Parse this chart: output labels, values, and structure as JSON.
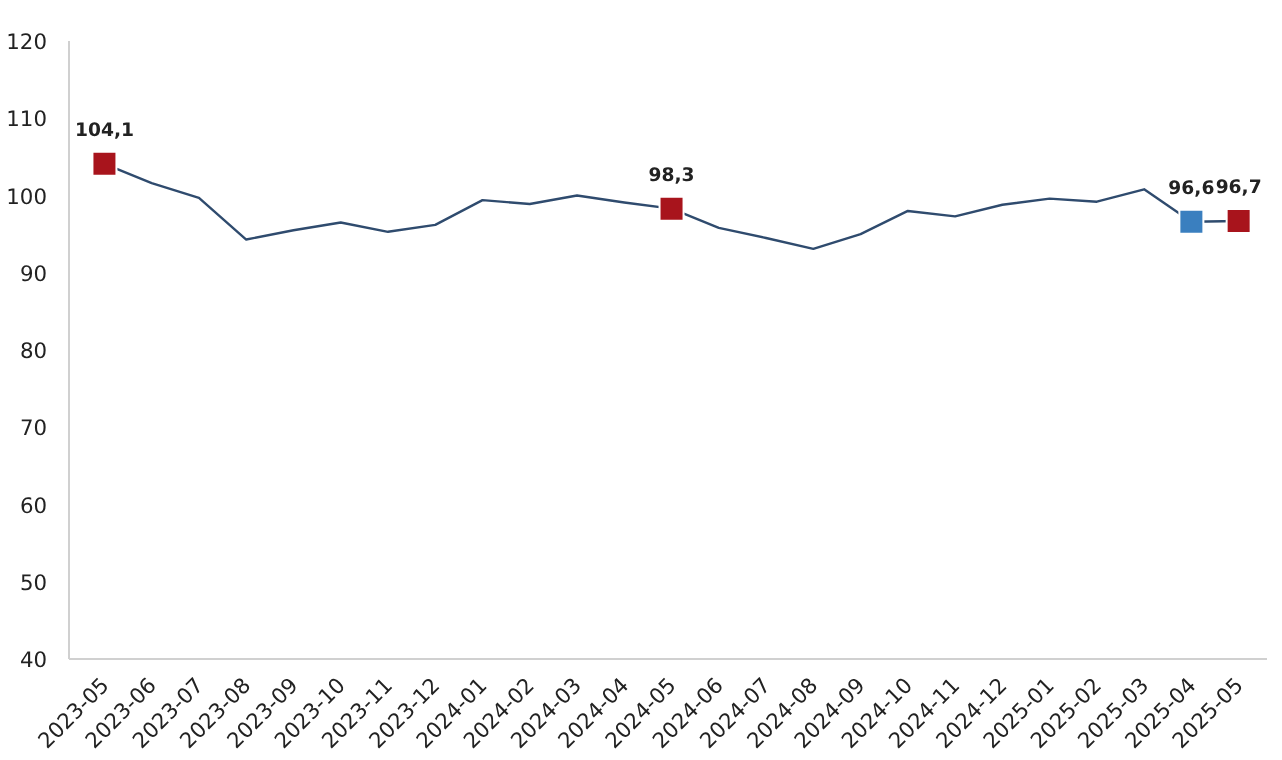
{
  "chart_data": {
    "type": "line",
    "categories": [
      "2023-05",
      "2023-06",
      "2023-07",
      "2023-08",
      "2023-09",
      "2023-10",
      "2023-11",
      "2023-12",
      "2024-01",
      "2024-02",
      "2024-03",
      "2024-04",
      "2024-05",
      "2024-06",
      "2024-07",
      "2024-08",
      "2024-09",
      "2024-10",
      "2024-11",
      "2024-12",
      "2025-01",
      "2025-02",
      "2025-03",
      "2025-04",
      "2025-05"
    ],
    "series": [
      {
        "color": "#2f4b6e",
        "values": [
          104.1,
          101.6,
          99.7,
          94.3,
          95.5,
          96.5,
          95.3,
          96.2,
          99.4,
          98.9,
          100.0,
          99.1,
          98.3,
          95.8,
          94.5,
          93.1,
          95.0,
          98.0,
          97.3,
          98.8,
          99.6,
          99.2,
          100.8,
          96.6,
          96.7
        ]
      },
      {
        "type": "scatter",
        "colors": [
          "#a8141c",
          null,
          null,
          null,
          null,
          null,
          null,
          null,
          null,
          null,
          null,
          null,
          "#a8141c",
          null,
          null,
          null,
          null,
          null,
          null,
          null,
          null,
          null,
          null,
          "#3a7fbf",
          "#a8141c"
        ],
        "values": [
          104.1,
          null,
          null,
          null,
          null,
          null,
          null,
          null,
          null,
          null,
          null,
          null,
          98.3,
          null,
          null,
          null,
          null,
          null,
          null,
          null,
          null,
          null,
          null,
          96.6,
          96.7
        ],
        "value_labels": [
          "104,1",
          null,
          null,
          null,
          null,
          null,
          null,
          null,
          null,
          null,
          null,
          null,
          "98,3",
          null,
          null,
          null,
          null,
          null,
          null,
          null,
          null,
          null,
          null,
          "96,6",
          "96,7"
        ],
        "marker": "square"
      }
    ],
    "ylim": [
      40,
      120
    ],
    "yticks": [
      40,
      50,
      60,
      70,
      80,
      90,
      100,
      110,
      120
    ],
    "grid": false
  }
}
